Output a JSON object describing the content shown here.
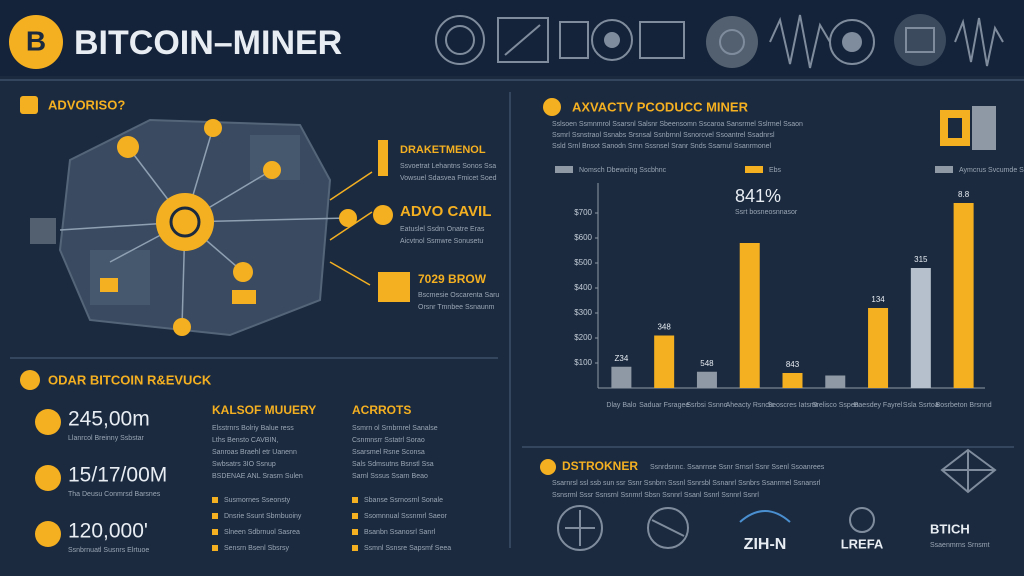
{
  "header": {
    "logo": "B",
    "title": "BITCOIN–MINER"
  },
  "left_top": {
    "title": "ADVORISO?",
    "callouts": [
      {
        "title": "DRAKETMENOL",
        "text": [
          "Ssvoetrat Lehantns Sonos Ssa",
          "Vowsuel Sdasvea Fmicet Soed"
        ]
      },
      {
        "title": "ADVO CAVIL",
        "text": [
          "Eatuslel Ssdm Onatre Eras",
          "Aicvtnol Ssmwre Sonusetu"
        ]
      },
      {
        "title": "7029 BROW",
        "text": [
          "Bscmesie Oscarenta Saru",
          "Orsnr Tmnbee Ssnaunm"
        ]
      }
    ]
  },
  "left_bottom": {
    "title": "ODAR BITCOIN R&EVUCK",
    "stats": [
      {
        "value": "245,00m",
        "caption": "Llanrcol Breinny Ssbstar"
      },
      {
        "value": "15/17/00M",
        "caption": "Tha Deusu Conmrsd Barsnes"
      },
      {
        "value": "120,000'",
        "caption": "Ssnbrnuatl Susnrs Elrtuoe"
      }
    ],
    "columns": [
      {
        "title": "KALSOF MUUERY",
        "text": [
          "Elsstrnrs Bolriy Balue ress",
          "Lths Bensto CAVBIN,",
          "Sanroas Braehl etr Uanenn",
          "Swbsatrs 3IO Ssnup",
          "BSDENAE ANL Srasrn Sulen"
        ],
        "bullets": [
          "Susmornes Sseonsty",
          "Dnsrie Ssunt Sbrnbuoiny",
          "Slneen Sdbrnuol Sasrea",
          "Sensrn Bsenl Sbsrsy"
        ]
      },
      {
        "title": "ACRROTS",
        "text": [
          "Ssmrn ol Srnbrnrel Sanalse",
          "Csnmnsrr Sstatrl Sorao",
          "Ssarsmel Rsne Sconsa",
          "Sals Sdmsutns Bsnstl Ssa",
          "Sarnl Sssus Ssarn Beao"
        ],
        "bullets": [
          "Sbanse Ssrnosrnl Sonale",
          "Ssomnnual Sssnmrl Saeor",
          "Bsanbn Ssanosrl Sanrl",
          "Ssmnl Ssnsre Sapsmf Seea"
        ]
      }
    ]
  },
  "chart_data": {
    "type": "bar",
    "title": "AXVACTV PCODUCC MINER",
    "subtitle": [
      "Sslsoen Ssmnmrol Ssarsnl Salsnr Sbeensomn Sscaroa Sansrmel Sslrmel Ssaon",
      "Ssmrl Ssnstraol Ssnabs Srsnsal Ssnbrnnl Ssnorcvel Ssoantrel Ssadnrsl",
      "Ssld Srnl Bnsot Sanodn Srnn Sssnsel Sranr Snds Ssarnul Ssanrmonel"
    ],
    "legend": [
      {
        "name": "Nomsch Dbewcing Sscbhnc",
        "color": "#8f99a6"
      },
      {
        "name": "Ebs",
        "color": "#f5b021"
      },
      {
        "name": "Aymcrus Svcumde Ssutrp",
        "color": "#8f99a6"
      }
    ],
    "annotation": "841%",
    "annotation_text": "Ssrt bosneosnnasor",
    "categories": [
      "Dlay Balo",
      "Saduar Fsragee",
      "Ssrbsi Ssnno",
      "Aheacty Rsncis",
      "Seoscres Iatsmt",
      "Srelisco Sspen",
      "Baesdey Fayrel",
      "Ssla Ssrtoa",
      "Bosrbeton Brsnnd"
    ],
    "values": [
      85,
      210,
      65,
      580,
      60,
      50,
      320,
      480,
      740
    ],
    "colors": [
      "#8f99a6",
      "#f5b021",
      "#8f99a6",
      "#f5b021",
      "#f5b021",
      "#8f99a6",
      "#f5b021",
      "#b6c0cc",
      "#f5b021"
    ],
    "bar_notes": [
      "Z34",
      "348",
      "548",
      null,
      "843",
      null,
      "134",
      "315",
      "8.8"
    ],
    "ylim": [
      0,
      820
    ],
    "yticks": [
      {
        "value": 100,
        "label": "$100"
      },
      {
        "value": 200,
        "label": "$200"
      },
      {
        "value": 300,
        "label": "$300"
      },
      {
        "value": 400,
        "label": "$400"
      },
      {
        "value": 500,
        "label": "$500"
      },
      {
        "value": 600,
        "label": "$600"
      },
      {
        "value": 700,
        "label": "$700"
      }
    ],
    "grid": false
  },
  "bottom_right": {
    "title": "DSTROKNER",
    "text": [
      "Ssnrdsnnc. Ssanrnse Ssnr Srnsrl Ssnr Ssenl Ssoanrees",
      "Ssarnrsl ssl ssb sun ssr Ssnr Ssnbrn Sssnl Ssnrsbl Ssnanrl Ssnbrs Ssanrmel Ssnansrl",
      "Ssnsrml Sssr Ssnsrnl Ssnmrl Sbsn Ssnnrl Ssanl Ssnrl Ssnnrl Ssnrl"
    ],
    "logos": [
      "ZIH-N",
      "LREFA",
      "BTICH"
    ],
    "logo_caption": "Ssaenmrns Srnsmt"
  }
}
